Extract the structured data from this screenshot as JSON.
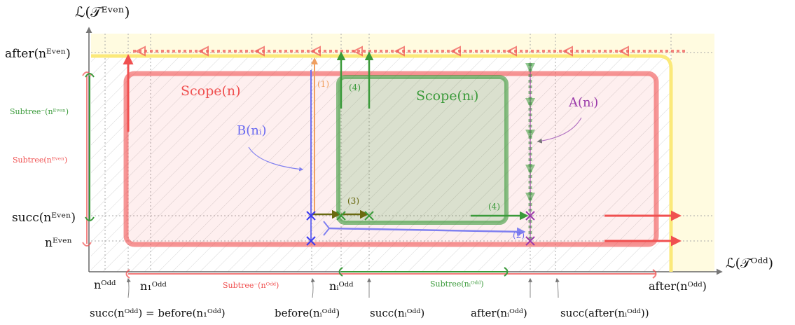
{
  "axes": {
    "y_label": "ℒ(𝒯ᴱᵛᵉⁿ)",
    "x_label": "ℒ(𝒯ᴼᵈᵈ)"
  },
  "y_ticks": {
    "after_even": "after(nᴱᵛᵉⁿ)",
    "succ_even": "succ(nᴱᵛᵉⁿ)",
    "n_even": "nᴱᵛᵉⁿ"
  },
  "x_ticks": {
    "n_odd": "nᴼᵈᵈ",
    "n1_odd": "n₁ᴼᵈᵈ",
    "ni_odd": "nᵢᴼᵈᵈ",
    "after_odd": "after(nᴼᵈᵈ)"
  },
  "bottom_labels": {
    "succ_before": "succ(nᴼᵈᵈ) = before(n₁ᴼᵈᵈ)",
    "before_ni": "before(nᵢᴼᵈᵈ)",
    "succ_ni": "succ(nᵢᴼᵈᵈ)",
    "after_ni": "after(nᵢᴼᵈᵈ)",
    "succ_after_ni": "succ(after(nᵢᴼᵈᵈ))"
  },
  "regions": {
    "scope_n": "Scope(n)",
    "scope_ni": "Scope(nᵢ)",
    "a_ni": "A(nᵢ)",
    "b_ni": "B(nᵢ)"
  },
  "subtrees": {
    "minus_even": "Subtree⁻(nᴱᵛᵉⁿ)",
    "even": "Subtree(nᴱᵛᵉⁿ)",
    "minus_odd": "Subtree⁻(nᴼᵈᵈ)",
    "ni_odd": "Subtree(nᵢᴼᵈᵈ)"
  },
  "step_markers": {
    "s1": "(1)",
    "s2": "(2)",
    "s3": "(3)",
    "s4a": "(4)",
    "s4b": "(4)"
  },
  "colors": {
    "red": "#f05050",
    "green": "#3a9a3a",
    "blue": "#6a6af0",
    "purple": "#9a3aaa",
    "orange": "#f0a060",
    "yellow": "#fbe97a",
    "olive": "#6a6a10"
  }
}
